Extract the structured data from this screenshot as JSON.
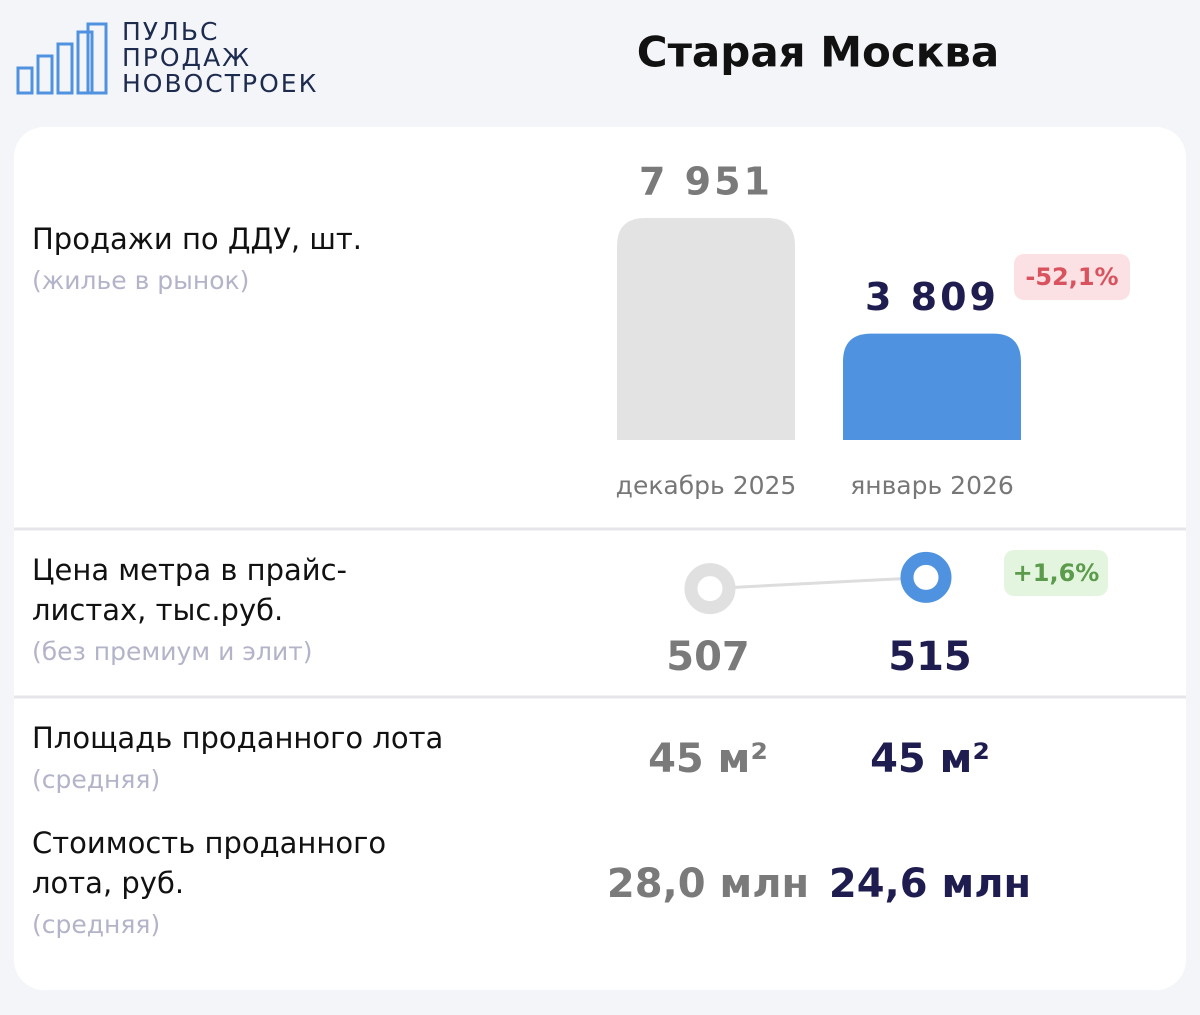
{
  "header": {
    "logo_lines": [
      "ПУЛЬС",
      "ПРОДАЖ",
      "НОВОСТРОЕК"
    ],
    "title": "Старая Москва"
  },
  "chart_data": [
    {
      "type": "bar",
      "title": "Продажи по ДДУ, шт.",
      "subtitle": "(жилье в рынок)",
      "categories": [
        "декабрь 2025",
        "январь 2026"
      ],
      "values": [
        7951,
        3809
      ],
      "value_labels": [
        "7 951",
        "3 809"
      ],
      "colors": [
        "#e3e3e3",
        "#4f93e0"
      ],
      "annotation": "-52,1%"
    },
    {
      "type": "line",
      "title_lines": [
        "Цена метра в прайс-",
        "листах, тыс.руб."
      ],
      "subtitle": "(без премиум и элит)",
      "values": [
        507,
        515
      ],
      "colors": [
        "#e0e0e0",
        "#4f93e0"
      ],
      "annotation": "+1,6%"
    }
  ],
  "table": {
    "rows": [
      {
        "title_lines": [
          "Площадь проданного лота"
        ],
        "subtitle": "(средняя)",
        "values": [
          "45 м²",
          "45 м²"
        ]
      },
      {
        "title_lines": [
          "Стоимость проданного",
          "лота, руб."
        ],
        "subtitle": "(средняя)",
        "values": [
          "28,0 млн",
          "24,6 млн"
        ]
      }
    ]
  }
}
